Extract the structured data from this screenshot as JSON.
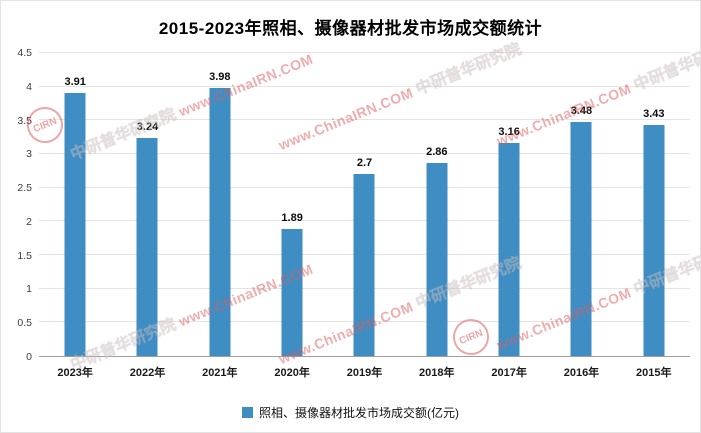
{
  "chart_data": {
    "type": "bar",
    "title": "2015-2023年照相、摄像器材批发市场成交额统计",
    "categories": [
      "2023年",
      "2022年",
      "2021年",
      "2020年",
      "2019年",
      "2018年",
      "2017年",
      "2016年",
      "2015年"
    ],
    "values": [
      3.91,
      3.24,
      3.98,
      1.89,
      2.7,
      2.86,
      3.16,
      3.48,
      3.43
    ],
    "ylim": [
      0,
      4.5
    ],
    "yticks": [
      "0",
      "0.5",
      "1",
      "1.5",
      "2",
      "2.5",
      "3",
      "3.5",
      "4",
      "4.5"
    ],
    "legend": "照相、摄像器材批发市场成交额(亿元)",
    "bar_color": "#3e8ec4",
    "grid": true,
    "legend_position": "bottom"
  },
  "watermark": {
    "url": "www.ChinaIRN.COM",
    "name": "中研普华研究院",
    "logo": "CIRN"
  }
}
